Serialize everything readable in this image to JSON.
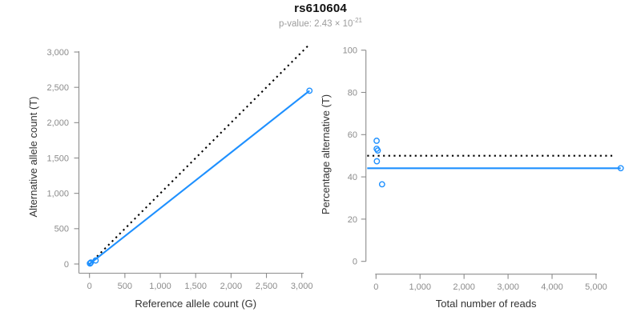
{
  "header": {
    "title": "rs610604",
    "pvalue_prefix": "p-value: 2.43 × 10",
    "pvalue_exponent": "-21"
  },
  "style": {
    "accent": "#1E90FF",
    "axis_color": "#8c8c8c",
    "tick_label_color": "#8c8c8c",
    "axis_title_color": "#333333"
  },
  "chart_data": [
    {
      "type": "scatter",
      "name": "allele-count-scatter",
      "title": "rs610604",
      "subtitle": "p-value: 2.43×10^-21",
      "xlabel": "Reference allele count (G)",
      "ylabel": "Alternative allele count (T)",
      "xlim": [
        0,
        3150
      ],
      "ylim": [
        0,
        3150
      ],
      "grid": false,
      "xticks": [
        0,
        500,
        1000,
        1500,
        2000,
        2500,
        3000
      ],
      "xtick_labels": [
        "0",
        "500",
        "1,000",
        "1,500",
        "2,000",
        "2,500",
        "3,000"
      ],
      "yticks": [
        0,
        500,
        1000,
        1500,
        2000,
        2500,
        3000
      ],
      "ytick_labels": [
        "0",
        "500",
        "1,000",
        "1,500",
        "2,000",
        "2,500",
        "3,000"
      ],
      "points": [
        [
          6,
          8
        ],
        [
          7,
          8
        ],
        [
          10,
          9
        ],
        [
          19,
          21
        ],
        [
          87,
          50
        ],
        [
          3108,
          2452
        ]
      ],
      "lines": [
        {
          "name": "identity-line",
          "style": "dotted",
          "color": "#000000",
          "from": [
            0,
            0
          ],
          "to": [
            3115,
            3115
          ]
        },
        {
          "name": "fit-line",
          "style": "solid",
          "color": "#1E90FF",
          "from": [
            0,
            0
          ],
          "to": [
            3108,
            2452
          ]
        }
      ]
    },
    {
      "type": "scatter",
      "name": "percentage-scatter",
      "xlabel": "Total number of reads",
      "ylabel": "Percentage alternative (T)",
      "xlim": [
        0,
        5600
      ],
      "ylim": [
        0,
        100
      ],
      "grid": false,
      "xticks": [
        0,
        1000,
        2000,
        3000,
        4000,
        5000
      ],
      "xtick_labels": [
        "0",
        "1,000",
        "2,000",
        "3,000",
        "4,000",
        "5,000"
      ],
      "yticks": [
        0,
        20,
        40,
        60,
        80,
        100
      ],
      "ytick_labels": [
        "0",
        "20",
        "40",
        "60",
        "80",
        "100"
      ],
      "points": [
        [
          14,
          57.1
        ],
        [
          15,
          53.3
        ],
        [
          40,
          52.5
        ],
        [
          19,
          47.4
        ],
        [
          137,
          36.5
        ],
        [
          5560,
          44.1
        ]
      ],
      "lines": [
        {
          "name": "expected-50pct-line",
          "style": "dotted",
          "color": "#000000",
          "from": [
            -200,
            50
          ],
          "to": [
            5440,
            50
          ]
        },
        {
          "name": "observed-pct-line",
          "style": "solid",
          "color": "#1E90FF",
          "from": [
            -200,
            44.1
          ],
          "to": [
            5560,
            44.1
          ]
        }
      ]
    }
  ]
}
